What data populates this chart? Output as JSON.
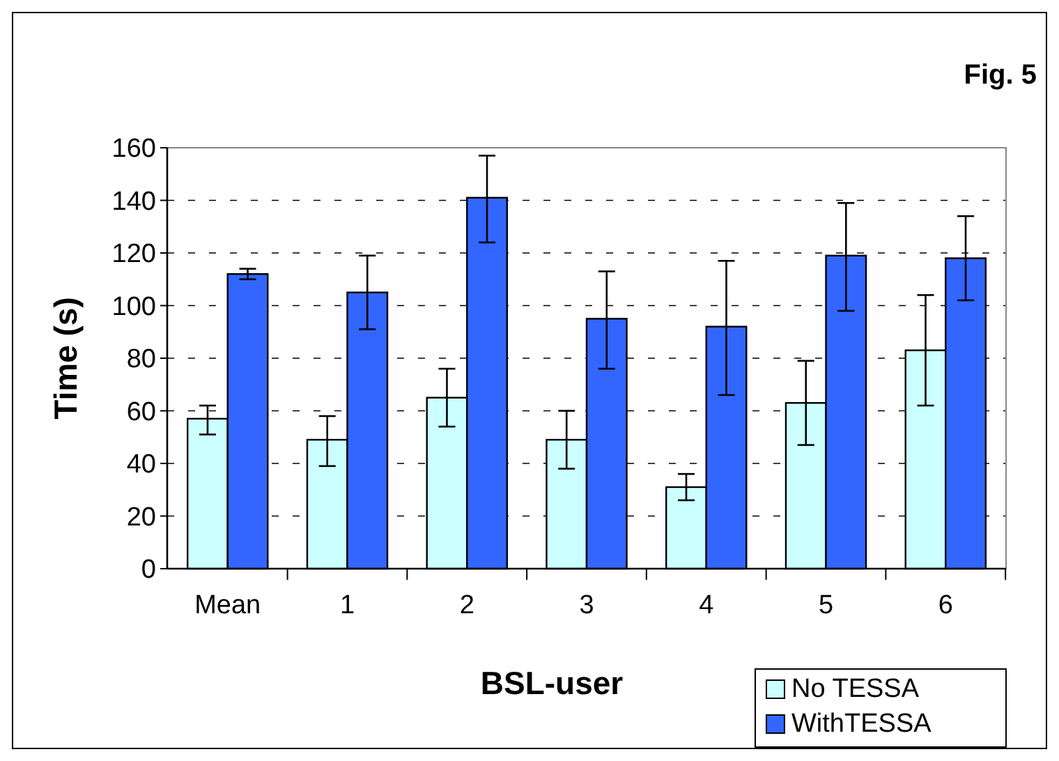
{
  "chart_data": {
    "type": "bar",
    "title": "Fig. 5",
    "xlabel": "BSL-user",
    "ylabel": "Time (s)",
    "categories": [
      "Mean",
      "1",
      "2",
      "3",
      "4",
      "5",
      "6"
    ],
    "series": [
      {
        "name": "No TESSA",
        "color": "#ccffff",
        "values": [
          57,
          49,
          65,
          49,
          31,
          63,
          83
        ],
        "errors": [
          [
            51,
            62
          ],
          [
            39,
            58
          ],
          [
            54,
            76
          ],
          [
            38,
            60
          ],
          [
            26,
            36
          ],
          [
            47,
            79
          ],
          [
            62,
            104
          ]
        ]
      },
      {
        "name": "WithTESSA",
        "color": "#3366ff",
        "values": [
          112,
          105,
          141,
          95,
          92,
          119,
          118
        ],
        "errors": [
          [
            110,
            114
          ],
          [
            91,
            119
          ],
          [
            124,
            157
          ],
          [
            76,
            113
          ],
          [
            66,
            117
          ],
          [
            98,
            139
          ],
          [
            102,
            134
          ]
        ]
      }
    ],
    "ylim": [
      0,
      160
    ],
    "yticks": [
      0,
      20,
      40,
      60,
      80,
      100,
      120,
      140,
      160
    ],
    "grid": "y",
    "legend": "bottom right"
  }
}
